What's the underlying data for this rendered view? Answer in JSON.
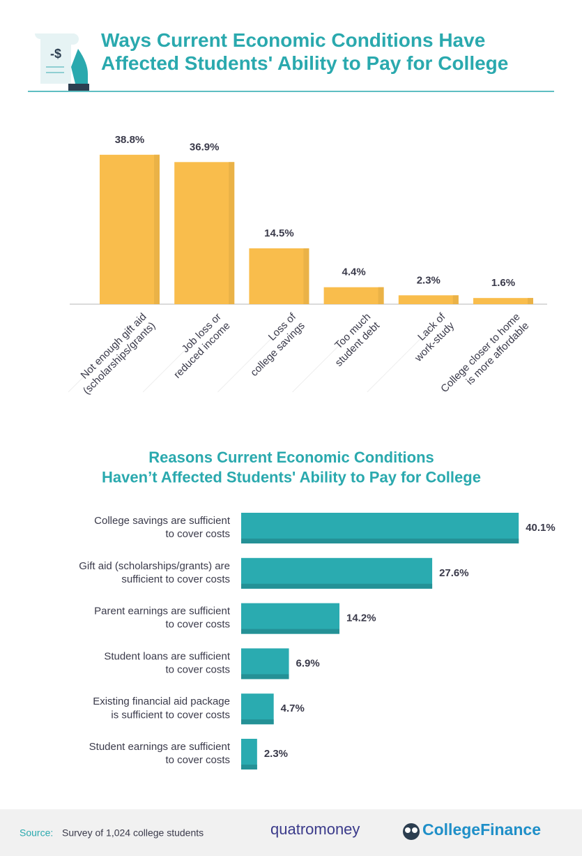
{
  "chart_data": [
    {
      "type": "bar",
      "orientation": "vertical",
      "title": "Ways Current Economic Conditions Have\nAffected Students' Ability to Pay for College",
      "categories": [
        "Not enough gift aid\n(scholarships/grants)",
        "Job loss or\nreduced income",
        "Loss of\ncollege savings",
        "Too much\nstudent debt",
        "Lack of\nwork-study",
        "College closer to home\nis more affordable"
      ],
      "values": [
        38.8,
        36.9,
        14.5,
        4.4,
        2.3,
        1.6
      ],
      "value_labels": [
        "38.8%",
        "36.9%",
        "14.5%",
        "4.4%",
        "2.3%",
        "1.6%"
      ],
      "color": "#f9bd4c"
    },
    {
      "type": "bar",
      "orientation": "horizontal",
      "title": "Reasons Current Economic Conditions\nHaven’t Affected Students' Ability to Pay for College",
      "categories": [
        "College savings are sufficient\nto cover costs",
        "Gift aid (scholarships/grants) are\nsufficient to cover costs",
        "Parent earnings are sufficient\nto cover costs",
        "Student loans are sufficient\nto cover costs",
        "Existing financial aid package\nis sufficient to cover costs",
        "Student earnings are sufficient\nto cover costs"
      ],
      "values": [
        40.1,
        27.6,
        14.2,
        6.9,
        4.7,
        2.3
      ],
      "value_labels": [
        "40.1%",
        "27.6%",
        "14.2%",
        "6.9%",
        "4.7%",
        "2.3%"
      ],
      "color": "#2aabb0"
    }
  ],
  "footer": {
    "source_label": "Source:",
    "source_text": "Survey of 1,024 college students",
    "logos": [
      "quatromoney",
      "CollegeFinance"
    ]
  }
}
